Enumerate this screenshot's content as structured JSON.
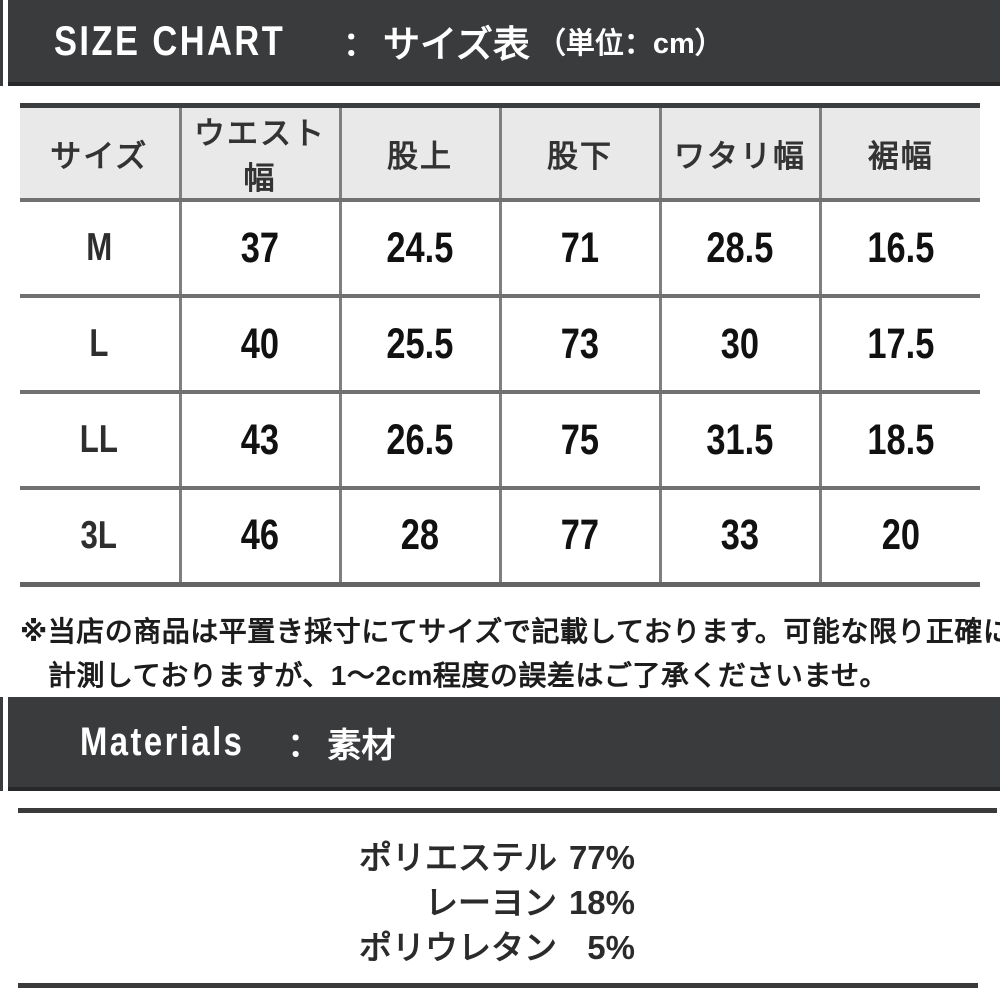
{
  "size_chart": {
    "title_en": "SIZE CHART",
    "separator": "：",
    "title_ja": "サイズ表",
    "unit": "（単位：cm）",
    "columns": [
      "サイズ",
      "ウエスト幅",
      "股上",
      "股下",
      "ワタリ幅",
      "裾幅"
    ],
    "rows": [
      {
        "size": "M",
        "values": [
          "37",
          "24.5",
          "71",
          "28.5",
          "16.5"
        ]
      },
      {
        "size": "L",
        "values": [
          "40",
          "25.5",
          "73",
          "30",
          "17.5"
        ]
      },
      {
        "size": "LL",
        "values": [
          "43",
          "26.5",
          "75",
          "31.5",
          "18.5"
        ]
      },
      {
        "size": "3L",
        "values": [
          "46",
          "28",
          "77",
          "33",
          "20"
        ]
      }
    ],
    "note_line1": "※当店の商品は平置き採寸にてサイズで記載しております。可能な限り正確に",
    "note_line2": "計測しておりますが、1〜2cm程度の誤差はご了承くださいませ。"
  },
  "materials": {
    "title_en": "Materials",
    "separator": "：",
    "title_ja": "素材",
    "items": [
      {
        "name": "ポリエステル",
        "value": "77%"
      },
      {
        "name": "レーヨン",
        "value": "18%"
      },
      {
        "name": "ポリウレタン",
        "value": "5%"
      }
    ]
  },
  "colors": {
    "bar_bg": "#3a3b3d",
    "bar_text": "#ffffff",
    "header_row_bg": "#e9e9e9",
    "border_dark": "#3a3a3a",
    "border_gray": "#707070",
    "text": "#1d1d1d"
  }
}
